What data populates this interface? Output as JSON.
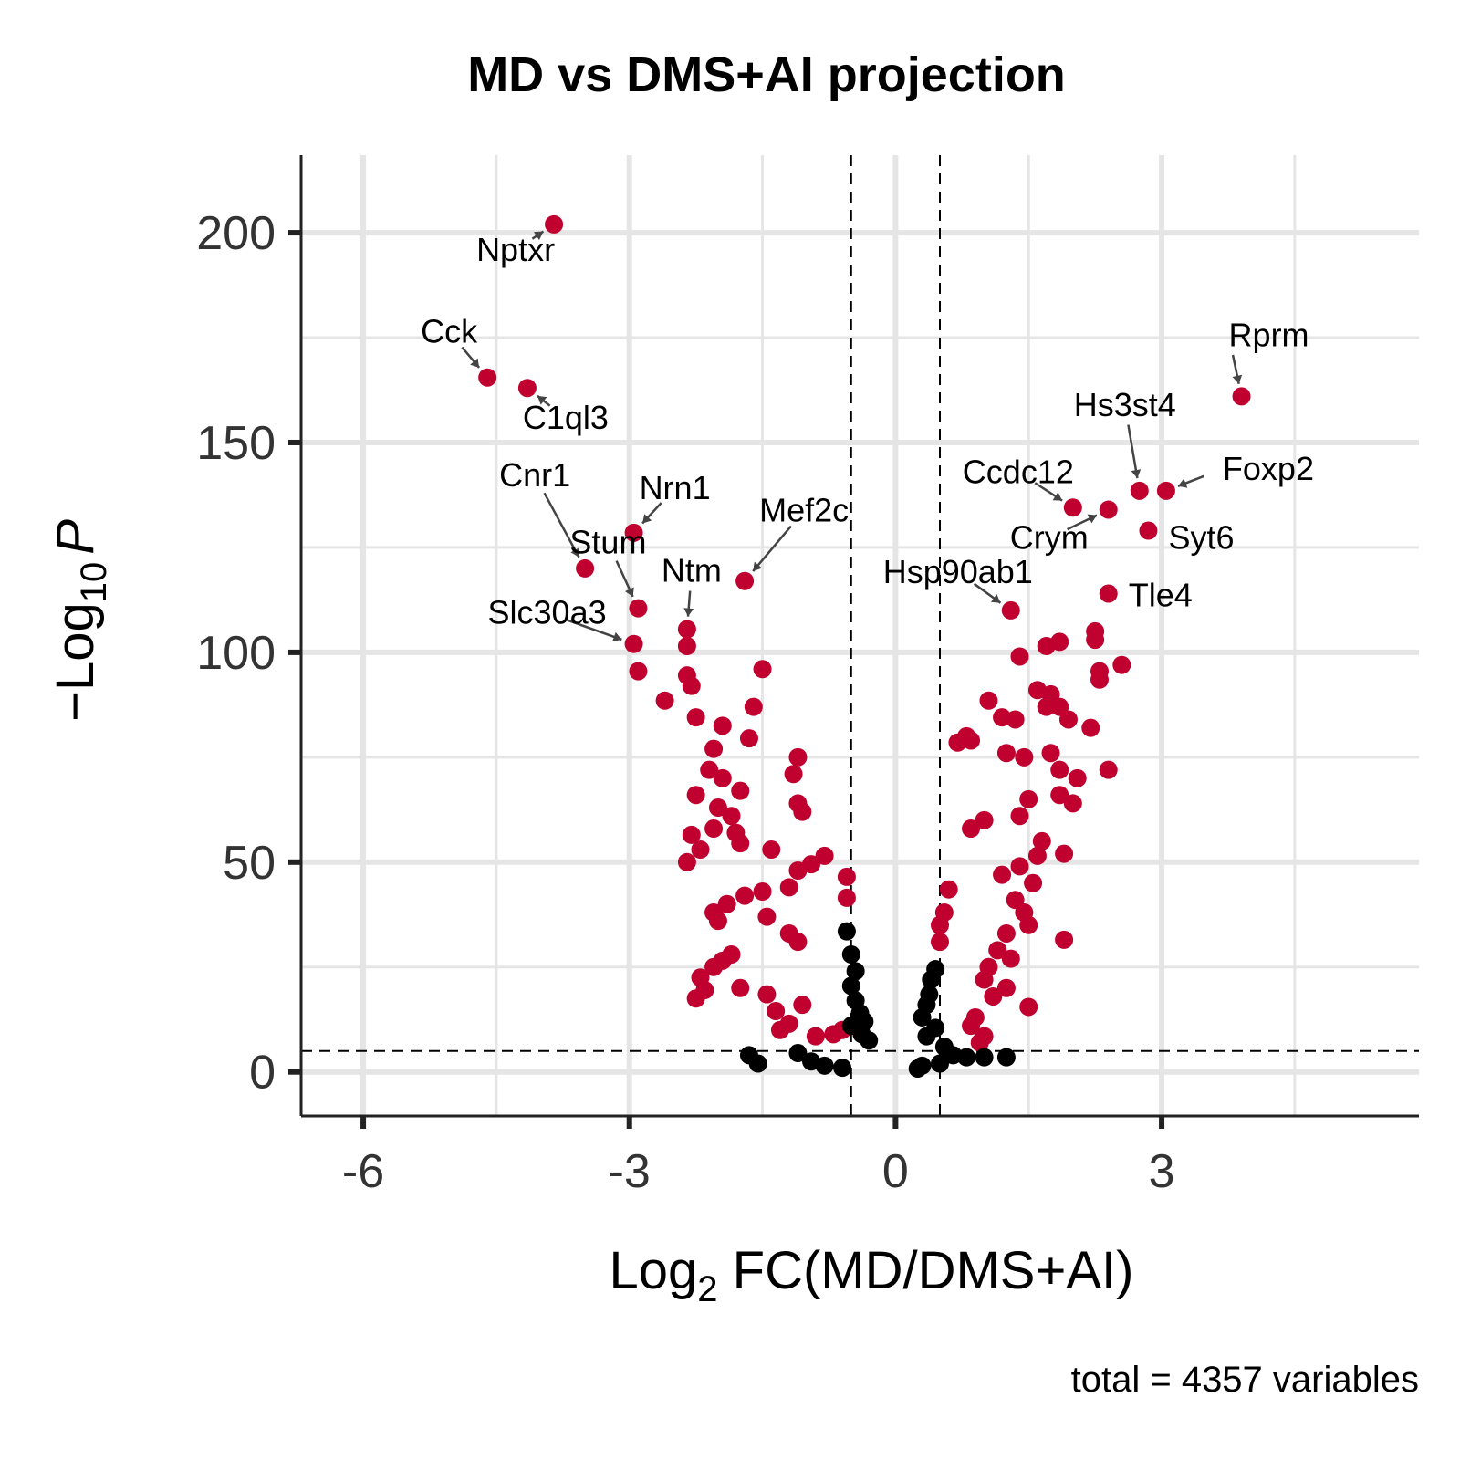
{
  "chart_data": {
    "type": "scatter",
    "title": "MD vs DMS+AI projection",
    "xlabel": {
      "prefix": "Log",
      "sub": "2",
      "rest": " FC(MD/DMS+AI)"
    },
    "ylabel": {
      "prefix": "−Log",
      "sub": "10",
      "italic": "P"
    },
    "caption": "total = 4357 variables",
    "x_ticks": [
      "-6",
      "-3",
      "0",
      "3"
    ],
    "x_tick_values": [
      -6,
      -3,
      0,
      3
    ],
    "y_ticks": [
      "0",
      "50",
      "100",
      "150",
      "200"
    ],
    "y_tick_values": [
      0,
      50,
      100,
      150,
      200
    ],
    "xlim": [
      -6.7,
      5.9
    ],
    "ylim": [
      -10.5,
      218.5
    ],
    "grid": true,
    "fc_cutoff": 0.5,
    "p_cutoff": 5,
    "colors": {
      "significant": "#c0002f",
      "not_significant": "#000000",
      "grid": "#e5e5e5",
      "axis": "#222222"
    },
    "series": [
      {
        "color_key": "significant",
        "points": [
          [
            -3.85,
            202
          ],
          [
            -4.6,
            165.5
          ],
          [
            -4.15,
            163
          ],
          [
            -2.95,
            128.5
          ],
          [
            -3.5,
            120
          ],
          [
            -2.9,
            110.5
          ],
          [
            -2.95,
            102
          ],
          [
            -1.7,
            117
          ],
          [
            -2.35,
            105.5
          ],
          [
            -2.35,
            101.5
          ],
          [
            -2.9,
            95.5
          ],
          [
            -1.5,
            96
          ],
          [
            -2.35,
            94.5
          ],
          [
            -2.6,
            88.5
          ],
          [
            -2.3,
            92
          ],
          [
            -1.6,
            87
          ],
          [
            -2.25,
            84.5
          ],
          [
            -1.95,
            82.5
          ],
          [
            -2.05,
            77
          ],
          [
            -1.65,
            79.5
          ],
          [
            -1.1,
            75
          ],
          [
            -1.15,
            71
          ],
          [
            -2.1,
            72
          ],
          [
            -1.95,
            70
          ],
          [
            -1.75,
            67
          ],
          [
            -2.25,
            66
          ],
          [
            -1.1,
            64
          ],
          [
            -1.05,
            62
          ],
          [
            -2.0,
            63
          ],
          [
            -1.85,
            61
          ],
          [
            -2.05,
            58
          ],
          [
            -1.8,
            57
          ],
          [
            -2.3,
            56.5
          ],
          [
            -1.75,
            54.5
          ],
          [
            -2.2,
            53
          ],
          [
            -1.4,
            53
          ],
          [
            -2.35,
            50
          ],
          [
            -0.8,
            51.5
          ],
          [
            -0.95,
            49.5
          ],
          [
            -1.1,
            48
          ],
          [
            -1.2,
            44
          ],
          [
            -1.5,
            43
          ],
          [
            -1.7,
            42
          ],
          [
            -1.9,
            40
          ],
          [
            -2.05,
            38
          ],
          [
            -2.0,
            36
          ],
          [
            -1.45,
            37
          ],
          [
            -1.2,
            33
          ],
          [
            -1.1,
            31
          ],
          [
            -0.55,
            41.5
          ],
          [
            -0.55,
            46.5
          ],
          [
            -1.85,
            28
          ],
          [
            -1.95,
            26.5
          ],
          [
            -2.05,
            25
          ],
          [
            -2.2,
            22.5
          ],
          [
            -2.15,
            19.5
          ],
          [
            -2.25,
            17.5
          ],
          [
            -1.75,
            20
          ],
          [
            -1.45,
            18.5
          ],
          [
            -1.35,
            14.5
          ],
          [
            -1.05,
            16
          ],
          [
            -1.3,
            10
          ],
          [
            -1.2,
            11.5
          ],
          [
            -0.9,
            8.5
          ],
          [
            -0.7,
            9
          ],
          [
            -0.6,
            10
          ],
          [
            1.05,
            88.5
          ],
          [
            1.3,
            110
          ],
          [
            1.4,
            99
          ],
          [
            1.6,
            91
          ],
          [
            1.7,
            87
          ],
          [
            1.75,
            90
          ],
          [
            2.0,
            134.5
          ],
          [
            2.4,
            134
          ],
          [
            2.75,
            138.5
          ],
          [
            3.05,
            138.5
          ],
          [
            2.85,
            129
          ],
          [
            2.4,
            114
          ],
          [
            3.9,
            161
          ],
          [
            2.25,
            105
          ],
          [
            2.25,
            103
          ],
          [
            2.3,
            95.5
          ],
          [
            2.55,
            97
          ],
          [
            2.3,
            93.5
          ],
          [
            1.85,
            102.5
          ],
          [
            1.7,
            101.5
          ],
          [
            1.85,
            87
          ],
          [
            1.95,
            84
          ],
          [
            2.2,
            82
          ],
          [
            1.35,
            84
          ],
          [
            1.2,
            84.5
          ],
          [
            0.8,
            80
          ],
          [
            0.7,
            78.5
          ],
          [
            0.85,
            79
          ],
          [
            1.25,
            76
          ],
          [
            1.45,
            75
          ],
          [
            1.75,
            76
          ],
          [
            1.85,
            72
          ],
          [
            2.4,
            72
          ],
          [
            2.05,
            70
          ],
          [
            2.0,
            64
          ],
          [
            1.85,
            66
          ],
          [
            1.5,
            65
          ],
          [
            1.4,
            61
          ],
          [
            1.0,
            60
          ],
          [
            0.85,
            58
          ],
          [
            1.65,
            55
          ],
          [
            1.9,
            52
          ],
          [
            1.6,
            51.5
          ],
          [
            1.4,
            49
          ],
          [
            1.2,
            47
          ],
          [
            1.55,
            45
          ],
          [
            1.35,
            41
          ],
          [
            1.45,
            38
          ],
          [
            1.5,
            35
          ],
          [
            1.25,
            33
          ],
          [
            1.9,
            31.5
          ],
          [
            1.15,
            29
          ],
          [
            1.3,
            27
          ],
          [
            1.05,
            25
          ],
          [
            1.0,
            22
          ],
          [
            1.25,
            20
          ],
          [
            1.1,
            18
          ],
          [
            1.5,
            15.5
          ],
          [
            0.9,
            13
          ],
          [
            0.85,
            11
          ],
          [
            1.0,
            8.5
          ],
          [
            0.95,
            7
          ],
          [
            0.6,
            43.5
          ],
          [
            0.55,
            38
          ],
          [
            0.5,
            35
          ],
          [
            0.5,
            31
          ]
        ]
      },
      {
        "color_key": "not_significant",
        "points": [
          [
            -0.55,
            33.5
          ],
          [
            -0.5,
            28
          ],
          [
            -0.45,
            24
          ],
          [
            -0.5,
            20.5
          ],
          [
            -0.45,
            17
          ],
          [
            -0.4,
            14
          ],
          [
            -0.35,
            12
          ],
          [
            -0.5,
            11
          ],
          [
            -0.38,
            9
          ],
          [
            -0.3,
            7.5
          ],
          [
            -1.65,
            4
          ],
          [
            -1.55,
            2
          ],
          [
            -1.1,
            4.5
          ],
          [
            -0.95,
            2.5
          ],
          [
            -0.8,
            1.5
          ],
          [
            -0.6,
            1.0
          ],
          [
            0.45,
            24.5
          ],
          [
            0.4,
            22
          ],
          [
            0.38,
            18.5
          ],
          [
            0.35,
            16
          ],
          [
            0.3,
            13
          ],
          [
            0.45,
            10.5
          ],
          [
            0.35,
            8.5
          ],
          [
            0.55,
            6
          ],
          [
            0.65,
            4
          ],
          [
            0.8,
            3.5
          ],
          [
            1.0,
            3.5
          ],
          [
            1.25,
            3.5
          ],
          [
            0.5,
            2
          ],
          [
            0.3,
            1.5
          ],
          [
            0.25,
            0.8
          ]
        ]
      }
    ],
    "labels": [
      {
        "text": "Nptxr",
        "x": -3.85,
        "y": 202
      },
      {
        "text": "Cck",
        "x": -4.6,
        "y": 165.5
      },
      {
        "text": "C1ql3",
        "x": -4.15,
        "y": 163
      },
      {
        "text": "Cnr1",
        "x": -3.5,
        "y": 120
      },
      {
        "text": "Nrn1",
        "x": -2.95,
        "y": 128.5
      },
      {
        "text": "Stum",
        "x": -2.9,
        "y": 110.5
      },
      {
        "text": "Slc30a3",
        "x": -2.95,
        "y": 102
      },
      {
        "text": "Ntm",
        "x": -2.35,
        "y": 105.5
      },
      {
        "text": "Mef2c",
        "x": -1.7,
        "y": 117
      },
      {
        "text": "Hsp90ab1",
        "x": 1.3,
        "y": 110
      },
      {
        "text": "Ccdc12",
        "x": 2.0,
        "y": 134.5
      },
      {
        "text": "Crym",
        "x": 2.4,
        "y": 134
      },
      {
        "text": "Hs3st4",
        "x": 2.75,
        "y": 138.5
      },
      {
        "text": "Foxp2",
        "x": 3.05,
        "y": 138.5
      },
      {
        "text": "Syt6",
        "x": 2.85,
        "y": 129
      },
      {
        "text": "Tle4",
        "x": 2.4,
        "y": 114
      },
      {
        "text": "Rprm",
        "x": 3.9,
        "y": 161
      }
    ]
  }
}
